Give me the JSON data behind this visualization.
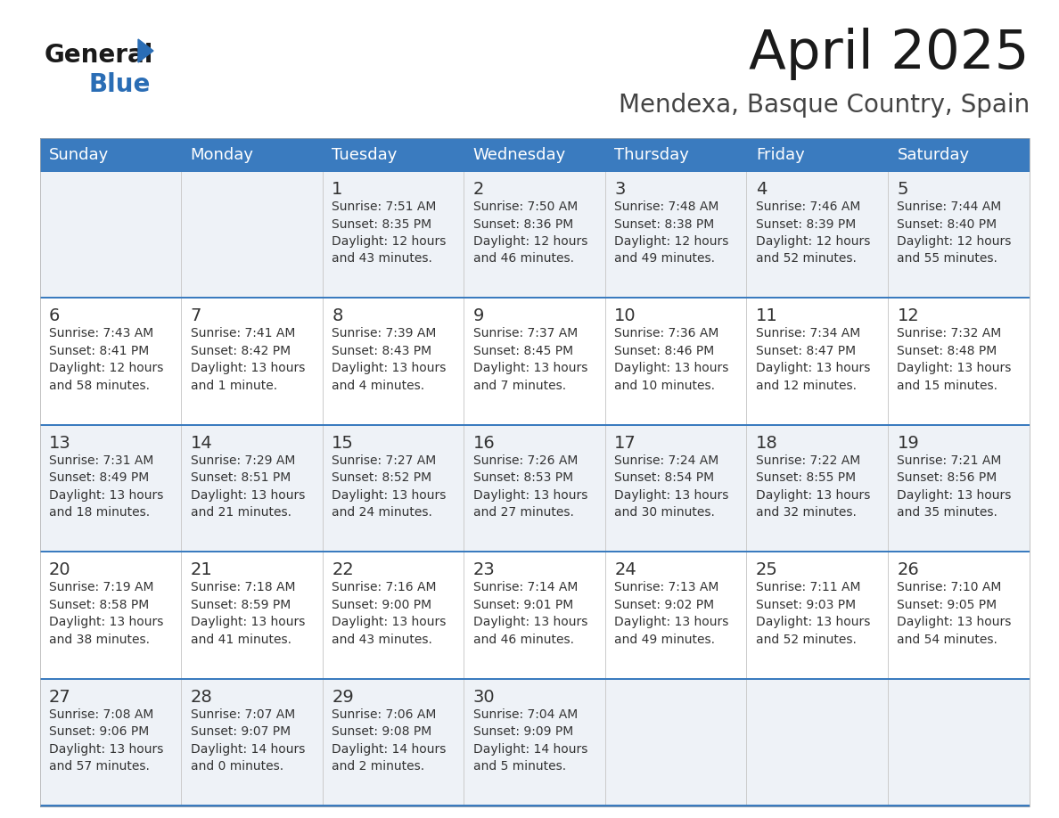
{
  "title": "April 2025",
  "subtitle": "Mendexa, Basque Country, Spain",
  "days_of_week": [
    "Sunday",
    "Monday",
    "Tuesday",
    "Wednesday",
    "Thursday",
    "Friday",
    "Saturday"
  ],
  "header_bg": "#3a7bbf",
  "header_text": "#ffffff",
  "row_bg_odd": "#eef2f7",
  "row_bg_even": "#ffffff",
  "cell_text_color": "#333333",
  "separator_color": "#3a7bbf",
  "calendar_data": [
    [
      {
        "day": "",
        "info": ""
      },
      {
        "day": "",
        "info": ""
      },
      {
        "day": "1",
        "info": "Sunrise: 7:51 AM\nSunset: 8:35 PM\nDaylight: 12 hours\nand 43 minutes."
      },
      {
        "day": "2",
        "info": "Sunrise: 7:50 AM\nSunset: 8:36 PM\nDaylight: 12 hours\nand 46 minutes."
      },
      {
        "day": "3",
        "info": "Sunrise: 7:48 AM\nSunset: 8:38 PM\nDaylight: 12 hours\nand 49 minutes."
      },
      {
        "day": "4",
        "info": "Sunrise: 7:46 AM\nSunset: 8:39 PM\nDaylight: 12 hours\nand 52 minutes."
      },
      {
        "day": "5",
        "info": "Sunrise: 7:44 AM\nSunset: 8:40 PM\nDaylight: 12 hours\nand 55 minutes."
      }
    ],
    [
      {
        "day": "6",
        "info": "Sunrise: 7:43 AM\nSunset: 8:41 PM\nDaylight: 12 hours\nand 58 minutes."
      },
      {
        "day": "7",
        "info": "Sunrise: 7:41 AM\nSunset: 8:42 PM\nDaylight: 13 hours\nand 1 minute."
      },
      {
        "day": "8",
        "info": "Sunrise: 7:39 AM\nSunset: 8:43 PM\nDaylight: 13 hours\nand 4 minutes."
      },
      {
        "day": "9",
        "info": "Sunrise: 7:37 AM\nSunset: 8:45 PM\nDaylight: 13 hours\nand 7 minutes."
      },
      {
        "day": "10",
        "info": "Sunrise: 7:36 AM\nSunset: 8:46 PM\nDaylight: 13 hours\nand 10 minutes."
      },
      {
        "day": "11",
        "info": "Sunrise: 7:34 AM\nSunset: 8:47 PM\nDaylight: 13 hours\nand 12 minutes."
      },
      {
        "day": "12",
        "info": "Sunrise: 7:32 AM\nSunset: 8:48 PM\nDaylight: 13 hours\nand 15 minutes."
      }
    ],
    [
      {
        "day": "13",
        "info": "Sunrise: 7:31 AM\nSunset: 8:49 PM\nDaylight: 13 hours\nand 18 minutes."
      },
      {
        "day": "14",
        "info": "Sunrise: 7:29 AM\nSunset: 8:51 PM\nDaylight: 13 hours\nand 21 minutes."
      },
      {
        "day": "15",
        "info": "Sunrise: 7:27 AM\nSunset: 8:52 PM\nDaylight: 13 hours\nand 24 minutes."
      },
      {
        "day": "16",
        "info": "Sunrise: 7:26 AM\nSunset: 8:53 PM\nDaylight: 13 hours\nand 27 minutes."
      },
      {
        "day": "17",
        "info": "Sunrise: 7:24 AM\nSunset: 8:54 PM\nDaylight: 13 hours\nand 30 minutes."
      },
      {
        "day": "18",
        "info": "Sunrise: 7:22 AM\nSunset: 8:55 PM\nDaylight: 13 hours\nand 32 minutes."
      },
      {
        "day": "19",
        "info": "Sunrise: 7:21 AM\nSunset: 8:56 PM\nDaylight: 13 hours\nand 35 minutes."
      }
    ],
    [
      {
        "day": "20",
        "info": "Sunrise: 7:19 AM\nSunset: 8:58 PM\nDaylight: 13 hours\nand 38 minutes."
      },
      {
        "day": "21",
        "info": "Sunrise: 7:18 AM\nSunset: 8:59 PM\nDaylight: 13 hours\nand 41 minutes."
      },
      {
        "day": "22",
        "info": "Sunrise: 7:16 AM\nSunset: 9:00 PM\nDaylight: 13 hours\nand 43 minutes."
      },
      {
        "day": "23",
        "info": "Sunrise: 7:14 AM\nSunset: 9:01 PM\nDaylight: 13 hours\nand 46 minutes."
      },
      {
        "day": "24",
        "info": "Sunrise: 7:13 AM\nSunset: 9:02 PM\nDaylight: 13 hours\nand 49 minutes."
      },
      {
        "day": "25",
        "info": "Sunrise: 7:11 AM\nSunset: 9:03 PM\nDaylight: 13 hours\nand 52 minutes."
      },
      {
        "day": "26",
        "info": "Sunrise: 7:10 AM\nSunset: 9:05 PM\nDaylight: 13 hours\nand 54 minutes."
      }
    ],
    [
      {
        "day": "27",
        "info": "Sunrise: 7:08 AM\nSunset: 9:06 PM\nDaylight: 13 hours\nand 57 minutes."
      },
      {
        "day": "28",
        "info": "Sunrise: 7:07 AM\nSunset: 9:07 PM\nDaylight: 14 hours\nand 0 minutes."
      },
      {
        "day": "29",
        "info": "Sunrise: 7:06 AM\nSunset: 9:08 PM\nDaylight: 14 hours\nand 2 minutes."
      },
      {
        "day": "30",
        "info": "Sunrise: 7:04 AM\nSunset: 9:09 PM\nDaylight: 14 hours\nand 5 minutes."
      },
      {
        "day": "",
        "info": ""
      },
      {
        "day": "",
        "info": ""
      },
      {
        "day": "",
        "info": ""
      }
    ]
  ]
}
